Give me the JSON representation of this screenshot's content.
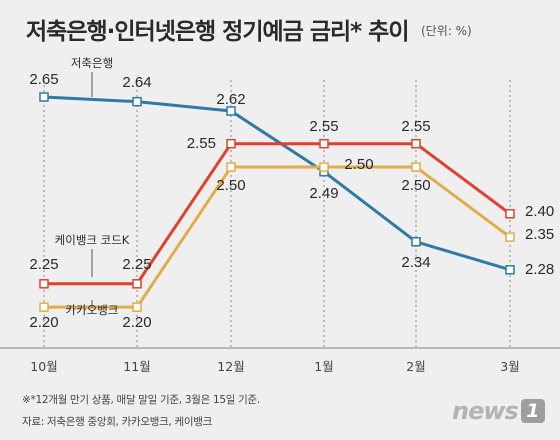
{
  "header": {
    "title": "저축은행·인터넷은행 정기예금 금리* 추이",
    "unit": "(단위: %)"
  },
  "footer": {
    "note": "※*12개월 만기 상품, 매달 말일 기준, 3월은 15일 기준.",
    "source": "자료: 저축은행 중앙회, 카카오뱅크, 케이뱅크",
    "logo_text": "news",
    "logo_mark": "1"
  },
  "colors": {
    "저축은행": "#2e7aa3",
    "케이뱅크 코드K": "#e0412e",
    "카카오뱅크": "#e1ad48"
  },
  "chart_data": {
    "type": "line",
    "title": "저축은행·인터넷은행 정기예금 금리* 추이",
    "unit": "(단위: %)",
    "categories": [
      "10월",
      "11월",
      "12월",
      "1월",
      "2월",
      "3월"
    ],
    "series": [
      {
        "name": "저축은행",
        "values": [
          2.65,
          2.64,
          2.62,
          null,
          null,
          2.28
        ],
        "labels": [
          "2.65",
          "2.64",
          "2.62",
          "",
          "2.34",
          "2.28"
        ],
        "points": [
          2.65,
          2.64,
          2.62,
          2.49,
          2.34,
          2.28
        ]
      },
      {
        "name": "케이뱅크 코드K",
        "values": [
          2.25,
          2.25,
          2.55,
          2.55,
          2.55,
          2.4
        ],
        "labels": [
          "2.25",
          "2.25",
          "2.55",
          "2.55",
          "2.55",
          "2.40"
        ]
      },
      {
        "name": "카카오뱅크",
        "values": [
          2.2,
          2.2,
          2.5,
          2.5,
          2.5,
          2.35
        ],
        "labels": [
          "2.20",
          "2.20",
          "2.50",
          "2.50",
          "2.50",
          "2.35"
        ]
      }
    ],
    "extra_labels": [
      "2.49"
    ],
    "grid": "vertical dotted lines at each category",
    "legend": "inline labels near series start"
  }
}
